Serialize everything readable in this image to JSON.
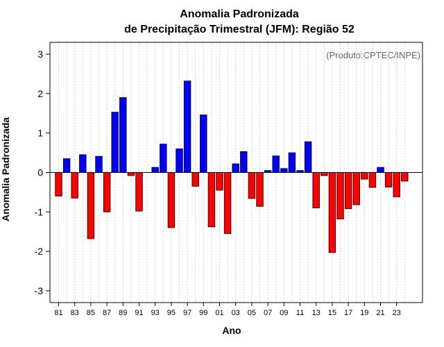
{
  "chart_data": {
    "type": "bar",
    "title_line1": "Anomalia Padronizada",
    "title_line2": "de Precipitação Trimestral (JFM): Região 52",
    "xlabel": "Ano",
    "ylabel": "Anomalia Padronizada",
    "credit": "(Produto:CPTEC/INPE)",
    "ylim": [
      -3.3,
      3.3
    ],
    "yticks": [
      -3,
      -2,
      -1,
      0,
      1,
      2,
      3
    ],
    "ytick_labels": [
      "-3",
      "-2",
      "-1",
      "0",
      "1",
      "2",
      "3"
    ],
    "xtick_labels": [
      "81",
      "83",
      "85",
      "87",
      "89",
      "91",
      "93",
      "95",
      "97",
      "99",
      "01",
      "03",
      "05",
      "07",
      "09",
      "11",
      "13",
      "15",
      "17",
      "19",
      "21",
      "23"
    ],
    "categories": [
      "1981",
      "1982",
      "1983",
      "1984",
      "1985",
      "1986",
      "1987",
      "1988",
      "1989",
      "1990",
      "1991",
      "1992",
      "1993",
      "1994",
      "1995",
      "1996",
      "1997",
      "1998",
      "1999",
      "2000",
      "2001",
      "2002",
      "2003",
      "2004",
      "2005",
      "2006",
      "2007",
      "2008",
      "2009",
      "2010",
      "2011",
      "2012",
      "2013",
      "2014",
      "2015",
      "2016",
      "2017",
      "2018",
      "2019",
      "2020",
      "2021",
      "2022",
      "2023",
      "2024"
    ],
    "values": [
      -0.6,
      0.35,
      -0.65,
      0.45,
      -1.68,
      0.41,
      -1.0,
      1.53,
      1.9,
      -0.08,
      -0.98,
      0.0,
      0.13,
      0.72,
      -1.4,
      0.6,
      2.32,
      -0.35,
      1.46,
      -1.38,
      -0.45,
      -1.55,
      0.22,
      0.53,
      -0.66,
      -0.86,
      0.05,
      0.42,
      0.1,
      0.5,
      0.05,
      0.78,
      -0.9,
      -0.08,
      -2.03,
      -1.18,
      -0.92,
      -0.82,
      -0.17,
      -0.38,
      0.13,
      -0.37,
      -0.62,
      -0.22
    ],
    "positive_color": "#0000ff",
    "negative_color": "#ff0000",
    "grid": true
  }
}
